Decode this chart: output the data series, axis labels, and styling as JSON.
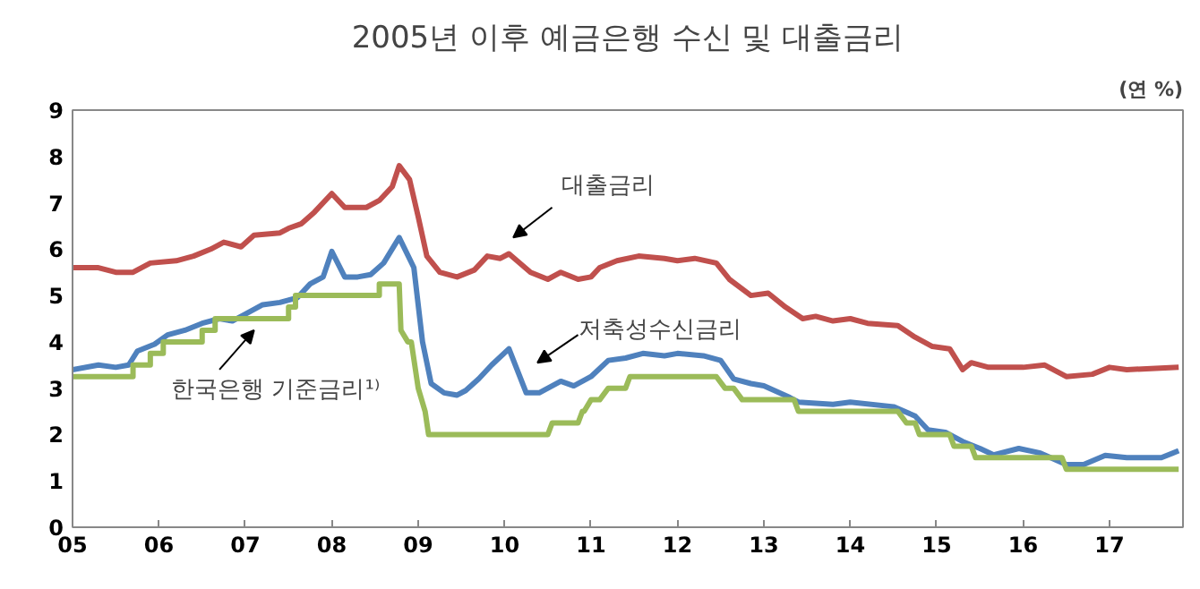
{
  "chart_data": {
    "type": "line",
    "title": "2005년 이후 예금은행 수신 및 대출금리",
    "annotations": [
      "(연 %)"
    ],
    "xlim": [
      2005,
      2017.85
    ],
    "ylim": [
      0,
      9
    ],
    "xticks": [
      {
        "value": 2005,
        "label": "05"
      },
      {
        "value": 2006,
        "label": "06"
      },
      {
        "value": 2007,
        "label": "07"
      },
      {
        "value": 2008,
        "label": "08"
      },
      {
        "value": 2009,
        "label": "09"
      },
      {
        "value": 2010,
        "label": "10"
      },
      {
        "value": 2011,
        "label": "11"
      },
      {
        "value": 2012,
        "label": "12"
      },
      {
        "value": 2013,
        "label": "13"
      },
      {
        "value": 2014,
        "label": "14"
      },
      {
        "value": 2015,
        "label": "15"
      },
      {
        "value": 2016,
        "label": "16"
      },
      {
        "value": 2017,
        "label": "17"
      }
    ],
    "yticks": [
      0,
      1,
      2,
      3,
      4,
      5,
      6,
      7,
      8,
      9
    ],
    "grid": false,
    "legend": false,
    "series": [
      {
        "name": "대출금리",
        "color": "#c0504d",
        "x": [
          2005.0,
          2005.3,
          2005.5,
          2005.7,
          2005.9,
          2006.2,
          2006.4,
          2006.6,
          2006.75,
          2006.95,
          2007.1,
          2007.4,
          2007.5,
          2007.65,
          2007.8,
          2008.0,
          2008.15,
          2008.4,
          2008.55,
          2008.7,
          2008.78,
          2008.9,
          2009.0,
          2009.1,
          2009.25,
          2009.45,
          2009.65,
          2009.8,
          2009.95,
          2010.05,
          2010.3,
          2010.5,
          2010.65,
          2010.85,
          2011.0,
          2011.1,
          2011.3,
          2011.55,
          2011.85,
          2012.0,
          2012.2,
          2012.45,
          2012.6,
          2012.85,
          2013.05,
          2013.25,
          2013.45,
          2013.6,
          2013.8,
          2014.0,
          2014.2,
          2014.55,
          2014.75,
          2014.95,
          2015.15,
          2015.3,
          2015.4,
          2015.6,
          2016.0,
          2016.25,
          2016.5,
          2016.8,
          2017.0,
          2017.2,
          2017.8
        ],
        "values": [
          5.6,
          5.6,
          5.5,
          5.5,
          5.7,
          5.75,
          5.85,
          6.0,
          6.15,
          6.05,
          6.3,
          6.35,
          6.45,
          6.55,
          6.8,
          7.2,
          6.9,
          6.9,
          7.05,
          7.35,
          7.8,
          7.5,
          6.7,
          5.85,
          5.5,
          5.4,
          5.55,
          5.85,
          5.8,
          5.9,
          5.5,
          5.35,
          5.5,
          5.35,
          5.4,
          5.6,
          5.75,
          5.85,
          5.8,
          5.75,
          5.8,
          5.7,
          5.35,
          5.0,
          5.05,
          4.75,
          4.5,
          4.55,
          4.45,
          4.5,
          4.4,
          4.35,
          4.1,
          3.9,
          3.85,
          3.4,
          3.55,
          3.45,
          3.45,
          3.5,
          3.25,
          3.3,
          3.45,
          3.4,
          3.45
        ]
      },
      {
        "name": "저축성수신금리",
        "color": "#4f81bd",
        "x": [
          2005.0,
          2005.3,
          2005.5,
          2005.65,
          2005.75,
          2005.95,
          2006.1,
          2006.3,
          2006.5,
          2006.7,
          2006.85,
          2007.0,
          2007.2,
          2007.4,
          2007.6,
          2007.75,
          2007.9,
          2008.0,
          2008.15,
          2008.3,
          2008.45,
          2008.6,
          2008.78,
          2008.95,
          2009.05,
          2009.15,
          2009.3,
          2009.45,
          2009.55,
          2009.7,
          2009.85,
          2010.05,
          2010.25,
          2010.4,
          2010.65,
          2010.8,
          2011.0,
          2011.2,
          2011.4,
          2011.6,
          2011.85,
          2012.0,
          2012.3,
          2012.5,
          2012.65,
          2012.85,
          2013.0,
          2013.3,
          2013.4,
          2013.8,
          2014.0,
          2014.5,
          2014.75,
          2014.9,
          2015.1,
          2015.3,
          2015.5,
          2015.66,
          2015.95,
          2016.2,
          2016.5,
          2016.7,
          2016.95,
          2017.2,
          2017.6,
          2017.8
        ],
        "values": [
          3.4,
          3.5,
          3.45,
          3.5,
          3.8,
          3.95,
          4.15,
          4.25,
          4.4,
          4.5,
          4.45,
          4.6,
          4.8,
          4.85,
          4.95,
          5.25,
          5.4,
          5.95,
          5.4,
          5.4,
          5.45,
          5.7,
          6.25,
          5.6,
          4.0,
          3.1,
          2.9,
          2.85,
          2.95,
          3.2,
          3.5,
          3.85,
          2.9,
          2.9,
          3.15,
          3.05,
          3.25,
          3.6,
          3.65,
          3.75,
          3.7,
          3.75,
          3.7,
          3.6,
          3.2,
          3.1,
          3.05,
          2.8,
          2.7,
          2.65,
          2.7,
          2.6,
          2.4,
          2.1,
          2.05,
          1.85,
          1.7,
          1.56,
          1.7,
          1.6,
          1.35,
          1.35,
          1.55,
          1.5,
          1.5,
          1.65
        ]
      },
      {
        "name": "한국은행 기준금리¹⁾",
        "color": "#9bbb59",
        "x": [
          2005.0,
          2005.7,
          2005.7,
          2005.9,
          2005.9,
          2006.05,
          2006.05,
          2006.5,
          2006.5,
          2006.65,
          2006.65,
          2007.5,
          2007.5,
          2007.58,
          2007.58,
          2008.55,
          2008.55,
          2008.78,
          2008.8,
          2008.88,
          2008.92,
          2009.0,
          2009.08,
          2009.12,
          2010.5,
          2010.55,
          2010.85,
          2010.9,
          2010.92,
          2011.0,
          2011.1,
          2011.2,
          2011.4,
          2011.45,
          2012.45,
          2012.55,
          2012.65,
          2012.75,
          2013.35,
          2013.4,
          2014.55,
          2014.65,
          2014.75,
          2014.8,
          2015.15,
          2015.2,
          2015.4,
          2015.45,
          2016.45,
          2016.5,
          2017.8
        ],
        "values": [
          3.25,
          3.25,
          3.5,
          3.5,
          3.75,
          3.75,
          4.0,
          4.0,
          4.25,
          4.25,
          4.5,
          4.5,
          4.75,
          4.75,
          5.0,
          5.0,
          5.25,
          5.25,
          4.25,
          4.0,
          4.0,
          3.0,
          2.5,
          2.0,
          2.0,
          2.25,
          2.25,
          2.5,
          2.5,
          2.75,
          2.75,
          3.0,
          3.0,
          3.25,
          3.25,
          3.0,
          3.0,
          2.75,
          2.75,
          2.5,
          2.5,
          2.25,
          2.25,
          2.0,
          2.0,
          1.75,
          1.75,
          1.5,
          1.5,
          1.25,
          1.25
        ]
      }
    ]
  }
}
